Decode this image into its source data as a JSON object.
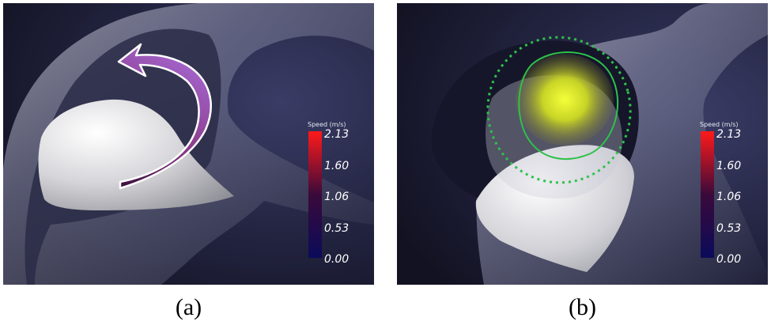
{
  "panels": [
    {
      "id": "a",
      "caption": "(a)",
      "colorbar": {
        "title": "Speed (m/s)",
        "ticks": [
          "2.13",
          "1.60",
          "1.06",
          "0.53",
          "0.00"
        ],
        "colors": {
          "top": "#ff1a1a",
          "mid": "#3a0a3a",
          "bottom": "#0b0b5a"
        }
      },
      "overlay": "flow-arrow"
    },
    {
      "id": "b",
      "caption": "(b)",
      "colorbar": {
        "title": "Speed (m/s)",
        "ticks": [
          "2.13",
          "1.60",
          "1.06",
          "0.53",
          "0.00"
        ],
        "colors": {
          "top": "#ff1a1a",
          "mid": "#3a0a3a",
          "bottom": "#0b0b5a"
        }
      },
      "overlay": "jet-contours"
    }
  ]
}
